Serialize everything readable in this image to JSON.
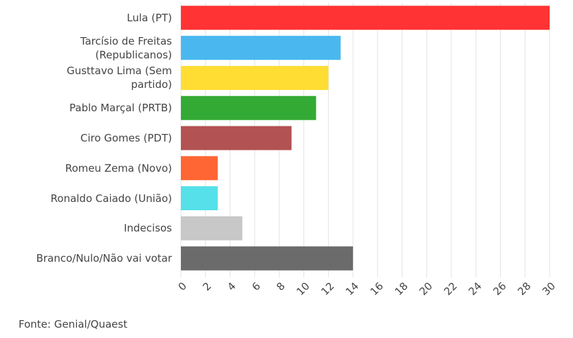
{
  "chart_data": {
    "type": "bar",
    "orientation": "horizontal",
    "categories": [
      "Lula (PT)",
      "Tarcísio de Freitas\n(Republicanos)",
      "Gusttavo Lima (Sem\npartido)",
      "Pablo Marçal (PRTB)",
      "Ciro Gomes (PDT)",
      "Romeu Zema (Novo)",
      "Ronaldo Caiado (União)",
      "Indecisos",
      "Branco/Nulo/Não vai votar"
    ],
    "values": [
      30,
      13,
      12,
      11,
      9,
      3,
      3,
      5,
      14
    ],
    "colors": [
      "#ff3333",
      "#4ab8ef",
      "#ffdd33",
      "#33aa33",
      "#b35252",
      "#ff6633",
      "#55e0ea",
      "#c8c8c8",
      "#6b6b6b"
    ],
    "xlim": [
      0,
      30
    ],
    "xticks": [
      0,
      2,
      4,
      6,
      8,
      10,
      12,
      14,
      16,
      18,
      20,
      22,
      24,
      26,
      28,
      30
    ],
    "grid": true,
    "source": "Fonte: Genial/Quaest"
  }
}
